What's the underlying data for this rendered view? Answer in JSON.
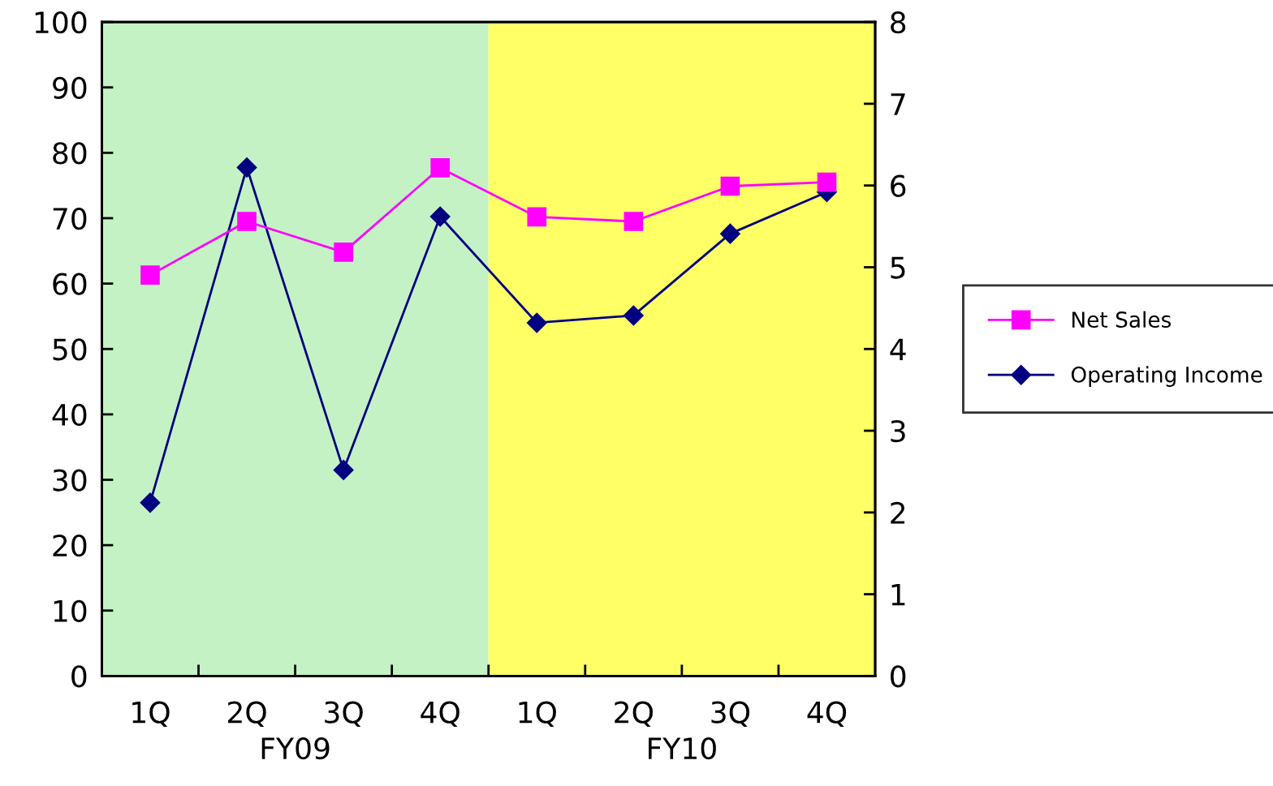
{
  "chart_data": {
    "type": "line",
    "categories": [
      "1Q",
      "2Q",
      "3Q",
      "4Q",
      "1Q",
      "2Q",
      "3Q",
      "4Q"
    ],
    "series": [
      {
        "name": "Net Sales",
        "color": "#ff00ff",
        "marker": "square",
        "values": [
          61.3,
          69.5,
          64.8,
          77.7,
          70.2,
          69.5,
          74.9,
          75.5
        ]
      },
      {
        "name": "Operating Income",
        "color": "#000080",
        "marker": "diamond",
        "axis": "y2",
        "values": [
          2.12,
          6.22,
          2.52,
          5.62,
          4.32,
          4.41,
          5.41,
          5.92
        ]
      }
    ],
    "ylim": [
      0,
      100
    ],
    "yticks": [
      0,
      10,
      20,
      30,
      40,
      50,
      60,
      70,
      80,
      90,
      100
    ],
    "y2lim": [
      0,
      8
    ],
    "y2ticks": [
      0,
      1,
      2,
      3,
      4,
      5,
      6,
      7,
      8
    ],
    "annotations": [
      "FY09",
      "FY10"
    ],
    "grid": false,
    "legend": "right",
    "line_style": "solid"
  }
}
